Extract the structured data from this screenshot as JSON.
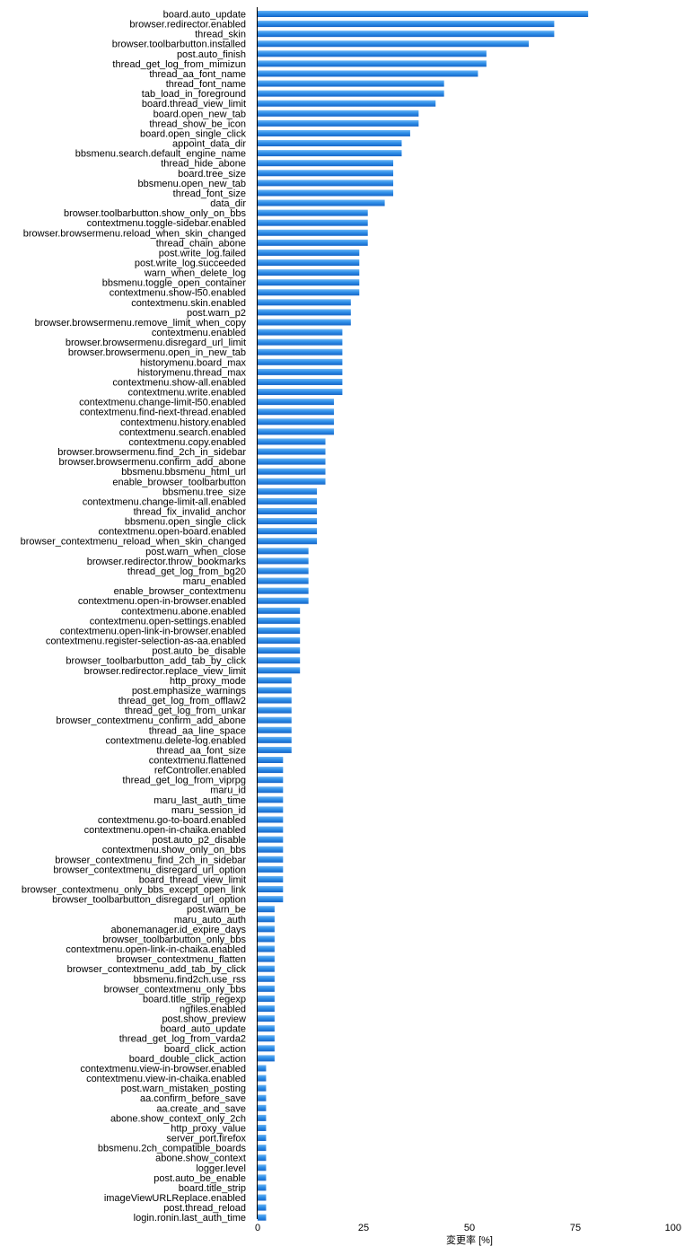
{
  "chart_data": {
    "type": "bar",
    "orientation": "horizontal",
    "xlabel": "変更率 [%]",
    "xlim": [
      0,
      100
    ],
    "xticks": [
      "0",
      "25",
      "50",
      "75",
      "100"
    ],
    "grid": false,
    "bar_color": "#2f8fe8",
    "categories": [
      "board.auto_update",
      "browser.redirector.enabled",
      "thread_skin",
      "browser.toolbarbutton.installed",
      "post.auto_finish",
      "thread_get_log_from_mimizun",
      "thread_aa_font_name",
      "thread_font_name",
      "tab_load_in_foreground",
      "board.thread_view_limit",
      "board.open_new_tab",
      "thread_show_be_icon",
      "board.open_single_click",
      "appoint_data_dir",
      "bbsmenu.search.default_engine_name",
      "thread_hide_abone",
      "board.tree_size",
      "bbsmenu.open_new_tab",
      "thread_font_size",
      "data_dir",
      "browser.toolbarbutton.show_only_on_bbs",
      "contextmenu.toggle-sidebar.enabled",
      "browser.browsermenu.reload_when_skin_changed",
      "thread_chain_abone",
      "post.write_log.failed",
      "post.write_log.succeeded",
      "warn_when_delete_log",
      "bbsmenu.toggle_open_container",
      "contextmenu.show-l50.enabled",
      "contextmenu.skin.enabled",
      "post.warn_p2",
      "browser.browsermenu.remove_limit_when_copy",
      "contextmenu.enabled",
      "browser.browsermenu.disregard_url_limit",
      "browser.browsermenu.open_in_new_tab",
      "historymenu.board_max",
      "historymenu.thread_max",
      "contextmenu.show-all.enabled",
      "contextmenu.write.enabled",
      "contextmenu.change-limit-l50.enabled",
      "contextmenu.find-next-thread.enabled",
      "contextmenu.history.enabled",
      "contextmenu.search.enabled",
      "contextmenu.copy.enabled",
      "browser.browsermenu.find_2ch_in_sidebar",
      "browser.browsermenu.confirm_add_abone",
      "bbsmenu.bbsmenu_html_url",
      "enable_browser_toolbarbutton",
      "bbsmenu.tree_size",
      "contextmenu.change-limit-all.enabled",
      "thread_fix_invalid_anchor",
      "bbsmenu.open_single_click",
      "contextmenu.open-board.enabled",
      "browser_contextmenu_reload_when_skin_changed",
      "post.warn_when_close",
      "browser.redirector.throw_bookmarks",
      "thread_get_log_from_bg20",
      "maru_enabled",
      "enable_browser_contextmenu",
      "contextmenu.open-in-browser.enabled",
      "contextmenu.abone.enabled",
      "contextmenu.open-settings.enabled",
      "contextmenu.open-link-in-browser.enabled",
      "contextmenu.register-selection-as-aa.enabled",
      "post.auto_be_disable",
      "browser_toolbarbutton_add_tab_by_click",
      "browser.redirector.replace_view_limit",
      "http_proxy_mode",
      "post.emphasize_warnings",
      "thread_get_log_from_offlaw2",
      "thread_get_log_from_unkar",
      "browser_contextmenu_confirm_add_abone",
      "thread_aa_line_space",
      "contextmenu.delete-log.enabled",
      "thread_aa_font_size",
      "contextmenu.flattened",
      "refController.enabled",
      "thread_get_log_from_viprpg",
      "maru_id",
      "maru_last_auth_time",
      "maru_session_id",
      "contextmenu.go-to-board.enabled",
      "contextmenu.open-in-chaika.enabled",
      "post.auto_p2_disable",
      "contextmenu.show_only_on_bbs",
      "browser_contextmenu_find_2ch_in_sidebar",
      "browser_contextmenu_disregard_url_option",
      "board_thread_view_limit",
      "browser_contextmenu_only_bbs_except_open_link",
      "browser_toolbarbutton_disregard_url_option",
      "post.warn_be",
      "maru_auto_auth",
      "abonemanager.id_expire_days",
      "browser_toolbarbutton_only_bbs",
      "contextmenu.open-link-in-chaika.enabled",
      "browser_contextmenu_flatten",
      "browser_contextmenu_add_tab_by_click",
      "bbsmenu.find2ch.use_rss",
      "browser_contextmenu_only_bbs",
      "board.title_strip_regexp",
      "ngfiles.enabled",
      "post.show_preview",
      "board_auto_update",
      "thread_get_log_from_varda2",
      "board_click_action",
      "board_double_click_action",
      "contextmenu.view-in-browser.enabled",
      "contextmenu.view-in-chaika.enabled",
      "post.warn_mistaken_posting",
      "aa.confirm_before_save",
      "aa.create_and_save",
      "abone.show_context_only_2ch",
      "http_proxy_value",
      "server_port.firefox",
      "bbsmenu.2ch_compatible_boards",
      "abone.show_context",
      "logger.level",
      "post.auto_be_enable",
      "board.title_strip",
      "imageViewURLReplace.enabled",
      "post.thread_reload",
      "login.ronin.last_auth_time"
    ],
    "values": [
      78,
      70,
      70,
      64,
      54,
      54,
      52,
      44,
      44,
      42,
      38,
      38,
      36,
      34,
      34,
      32,
      32,
      32,
      32,
      30,
      26,
      26,
      26,
      26,
      24,
      24,
      24,
      24,
      24,
      22,
      22,
      22,
      20,
      20,
      20,
      20,
      20,
      20,
      20,
      18,
      18,
      18,
      18,
      16,
      16,
      16,
      16,
      16,
      14,
      14,
      14,
      14,
      14,
      14,
      12,
      12,
      12,
      12,
      12,
      12,
      10,
      10,
      10,
      10,
      10,
      10,
      10,
      8,
      8,
      8,
      8,
      8,
      8,
      8,
      8,
      6,
      6,
      6,
      6,
      6,
      6,
      6,
      6,
      6,
      6,
      6,
      6,
      6,
      6,
      6,
      4,
      4,
      4,
      4,
      4,
      4,
      4,
      4,
      4,
      4,
      4,
      4,
      4,
      4,
      4,
      4,
      2,
      2,
      2,
      2,
      2,
      2,
      2,
      2,
      2,
      2,
      2,
      2,
      2,
      2,
      2,
      2
    ]
  }
}
